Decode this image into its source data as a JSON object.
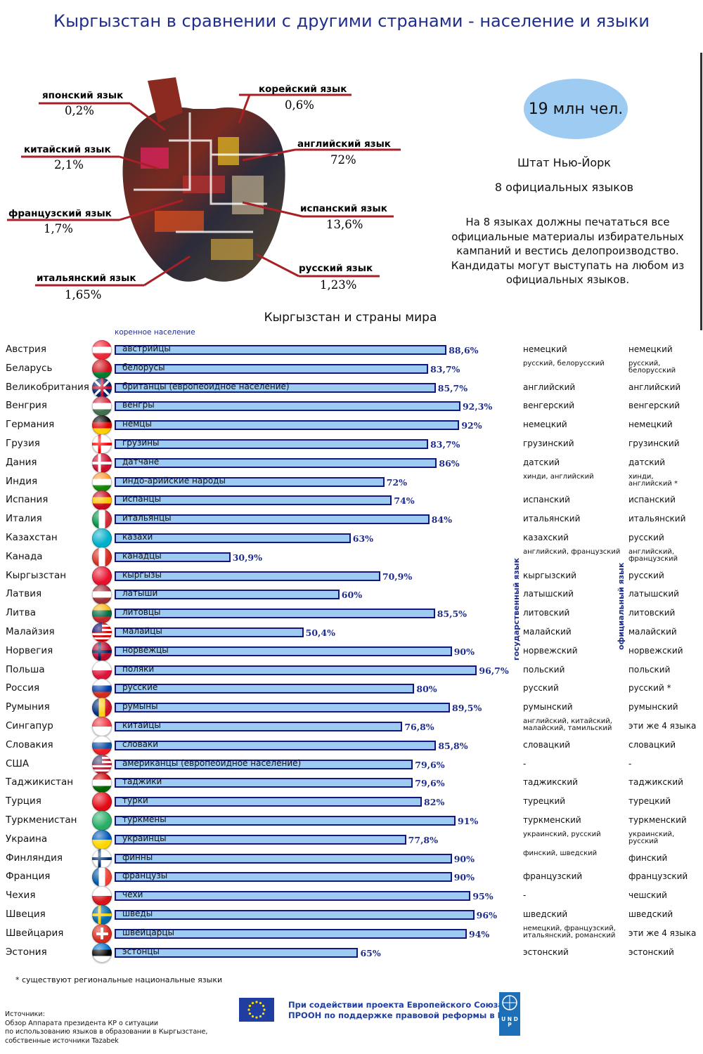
{
  "title": "Кыргызстан в сравнении с другими странами - население и языки",
  "apple_languages": [
    {
      "label": "японский язык",
      "pct": "0,2%"
    },
    {
      "label": "корейский язык",
      "pct": "0,6%"
    },
    {
      "label": "китайский язык",
      "pct": "2,1%"
    },
    {
      "label": "английский язык",
      "pct": "72%"
    },
    {
      "label": "французский язык",
      "pct": "1,7%"
    },
    {
      "label": "испанский язык",
      "pct": "13,6%"
    },
    {
      "label": "итальянский язык",
      "pct": "1,65%"
    },
    {
      "label": "русский язык",
      "pct": "1,23%"
    }
  ],
  "info": {
    "population": "19 млн чел.",
    "state": "Штат Нью-Йорк",
    "official": "8 официальных языков",
    "text": "На 8 языках должны печататься все официальные материалы избирательных кампаний и вестись делопроизводство. Кандидаты могут выступать на любом из официальных языков."
  },
  "chart_heading": "Кыргызстан и страны мира",
  "column_header": "коренное население",
  "state_lang_header": "государственный язык",
  "official_lang_header": "официальный язык",
  "chart_data": {
    "type": "bar",
    "orientation": "horizontal",
    "title": "Кыргызстан и страны мира",
    "series_label": "коренное население",
    "xlim": [
      0,
      100
    ],
    "rows": [
      {
        "country": "Австрия",
        "group": "австрийцы",
        "value": 88.6,
        "value_label": "88,6%",
        "state_lang": "немецкий",
        "official_lang": "немецкий",
        "flag": [
          "#ed2939",
          "#ffffff",
          "#ed2939"
        ],
        "flag_type": "h"
      },
      {
        "country": "Беларусь",
        "group": "белорусы",
        "value": 83.7,
        "value_label": "83,7%",
        "state_lang": "русский, белорусский",
        "official_lang": "русский, белорусский",
        "flag": [
          "#cf101a",
          "#cf101a",
          "#007c30"
        ],
        "flag_type": "h"
      },
      {
        "country": "Великобритания",
        "group": "британцы (европеоидное население)",
        "value": 85.7,
        "value_label": "85,7%",
        "state_lang": "английский",
        "official_lang": "английский",
        "flag": [
          "#012169",
          "#c8102e"
        ],
        "flag_type": "uk"
      },
      {
        "country": "Венгрия",
        "group": "венгры",
        "value": 92.3,
        "value_label": "92,3%",
        "state_lang": "венгерский",
        "official_lang": "венгерский",
        "flag": [
          "#cd2a3e",
          "#ffffff",
          "#436f4d"
        ],
        "flag_type": "h"
      },
      {
        "country": "Германия",
        "group": "немцы",
        "value": 92,
        "value_label": "92%",
        "state_lang": "немецкий",
        "official_lang": "немецкий",
        "flag": [
          "#000000",
          "#dd0000",
          "#ffce00"
        ],
        "flag_type": "h"
      },
      {
        "country": "Грузия",
        "group": "грузины",
        "value": 83.7,
        "value_label": "83,7%",
        "state_lang": "грузинский",
        "official_lang": "грузинский",
        "flag": [
          "#ffffff",
          "#ff0000"
        ],
        "flag_type": "cross"
      },
      {
        "country": "Дания",
        "group": "датчане",
        "value": 86,
        "value_label": "86%",
        "state_lang": "датский",
        "official_lang": "датский",
        "flag": [
          "#c8102e",
          "#ffffff"
        ],
        "flag_type": "cross"
      },
      {
        "country": "Индия",
        "group": "индо-арийские народы",
        "value": 72,
        "value_label": "72%",
        "state_lang": "хинди, английский",
        "official_lang": "хинди, английский *",
        "flag": [
          "#ff9933",
          "#ffffff",
          "#138808"
        ],
        "flag_type": "h"
      },
      {
        "country": "Испания",
        "group": "испанцы",
        "value": 74,
        "value_label": "74%",
        "state_lang": "испанский",
        "official_lang": "испанский",
        "flag": [
          "#c60b1e",
          "#ffc400",
          "#c60b1e"
        ],
        "flag_type": "h"
      },
      {
        "country": "Италия",
        "group": "итальянцы",
        "value": 84,
        "value_label": "84%",
        "state_lang": "итальянский",
        "official_lang": "итальянский",
        "flag": [
          "#009246",
          "#ffffff",
          "#ce2b37"
        ],
        "flag_type": "v"
      },
      {
        "country": "Казахстан",
        "group": "казахи",
        "value": 63,
        "value_label": "63%",
        "state_lang": "казахский",
        "official_lang": "русский",
        "flag": [
          "#00afca",
          "#fec50c"
        ],
        "flag_type": "solid"
      },
      {
        "country": "Канада",
        "group": "канадцы",
        "value": 30.9,
        "value_label": "30,9%",
        "state_lang": "английский, французский",
        "official_lang": "английский, французский",
        "flag": [
          "#d52b1e",
          "#ffffff",
          "#d52b1e"
        ],
        "flag_type": "v"
      },
      {
        "country": "Кыргызстан",
        "group": "кыргызы",
        "value": 70.9,
        "value_label": "70,9%",
        "state_lang": "кыргызский",
        "official_lang": "русский",
        "flag": [
          "#e8112d",
          "#ffef00"
        ],
        "flag_type": "solid"
      },
      {
        "country": "Латвия",
        "group": "латыши",
        "value": 60,
        "value_label": "60%",
        "state_lang": "латышский",
        "official_lang": "латышский",
        "flag": [
          "#9e3039",
          "#ffffff",
          "#9e3039"
        ],
        "flag_type": "h"
      },
      {
        "country": "Литва",
        "group": "литовцы",
        "value": 85.5,
        "value_label": "85,5%",
        "state_lang": "литовский",
        "official_lang": "литовский",
        "flag": [
          "#fdb913",
          "#006a44",
          "#c1272d"
        ],
        "flag_type": "h"
      },
      {
        "country": "Малайзия",
        "group": "малайцы",
        "value": 50.4,
        "value_label": "50,4%",
        "state_lang": "малайский",
        "official_lang": "малайский",
        "flag": [
          "#cc0001",
          "#ffffff",
          "#010066"
        ],
        "flag_type": "stripes"
      },
      {
        "country": "Норвегия",
        "group": "норвежцы",
        "value": 90,
        "value_label": "90%",
        "state_lang": "норвежский",
        "official_lang": "норвежский",
        "flag": [
          "#ba0c2f",
          "#00205b"
        ],
        "flag_type": "cross"
      },
      {
        "country": "Польша",
        "group": "поляки",
        "value": 96.7,
        "value_label": "96,7%",
        "state_lang": "польский",
        "official_lang": "польский",
        "flag": [
          "#ffffff",
          "#dc143c"
        ],
        "flag_type": "h2"
      },
      {
        "country": "Россия",
        "group": "русские",
        "value": 80,
        "value_label": "80%",
        "state_lang": "русский",
        "official_lang": "русский *",
        "flag": [
          "#ffffff",
          "#0039a6",
          "#d52b1e"
        ],
        "flag_type": "h"
      },
      {
        "country": "Румыния",
        "group": "румыны",
        "value": 89.5,
        "value_label": "89,5%",
        "state_lang": "румынский",
        "official_lang": "румынский",
        "flag": [
          "#002b7f",
          "#fcd116",
          "#ce1126"
        ],
        "flag_type": "v"
      },
      {
        "country": "Сингапур",
        "group": "китайцы",
        "value": 76.8,
        "value_label": "76,8%",
        "state_lang": "английский, китайский, малайский, тамильский",
        "official_lang": "эти же 4 языка",
        "flag": [
          "#ef3340",
          "#ffffff"
        ],
        "flag_type": "h2"
      },
      {
        "country": "Словакия",
        "group": "словаки",
        "value": 85.8,
        "value_label": "85,8%",
        "state_lang": "словацкий",
        "official_lang": "словацкий",
        "flag": [
          "#ffffff",
          "#0b4ea2",
          "#ee1c25"
        ],
        "flag_type": "h"
      },
      {
        "country": "США",
        "group": "американцы (европеоидное население)",
        "value": 79.6,
        "value_label": "79,6%",
        "state_lang": "-",
        "official_lang": "-",
        "flag": [
          "#b22234",
          "#ffffff",
          "#3c3b6e"
        ],
        "flag_type": "stripes"
      },
      {
        "country": "Таджикистан",
        "group": "таджики",
        "value": 79.6,
        "value_label": "79,6%",
        "state_lang": "таджикский",
        "official_lang": "таджикский",
        "flag": [
          "#cc0000",
          "#ffffff",
          "#006600"
        ],
        "flag_type": "h"
      },
      {
        "country": "Турция",
        "group": "турки",
        "value": 82,
        "value_label": "82%",
        "state_lang": "турецкий",
        "official_lang": "турецкий",
        "flag": [
          "#e30a17",
          "#e30a17"
        ],
        "flag_type": "solid"
      },
      {
        "country": "Туркменистан",
        "group": "туркмены",
        "value": 91,
        "value_label": "91%",
        "state_lang": "туркменский",
        "official_lang": "туркменский",
        "flag": [
          "#28ae66",
          "#28ae66"
        ],
        "flag_type": "solid"
      },
      {
        "country": "Украина",
        "group": "украинцы",
        "value": 77.8,
        "value_label": "77,8%",
        "state_lang": "украинский, русский",
        "official_lang": "украинский, русский",
        "flag": [
          "#0057b7",
          "#ffd700"
        ],
        "flag_type": "h2"
      },
      {
        "country": "Финляндия",
        "group": "финны",
        "value": 90,
        "value_label": "90%",
        "state_lang": "финский, шведский",
        "official_lang": "финский",
        "flag": [
          "#ffffff",
          "#002f6c"
        ],
        "flag_type": "cross"
      },
      {
        "country": "Франция",
        "group": "французы",
        "value": 90,
        "value_label": "90%",
        "state_lang": "французский",
        "official_lang": "французский",
        "flag": [
          "#0055a4",
          "#ffffff",
          "#ef4135"
        ],
        "flag_type": "v"
      },
      {
        "country": "Чехия",
        "group": "чехи",
        "value": 95,
        "value_label": "95%",
        "state_lang": "-",
        "official_lang": "чешский",
        "flag": [
          "#ffffff",
          "#d7141a"
        ],
        "flag_type": "h2"
      },
      {
        "country": "Швеция",
        "group": "шведы",
        "value": 96,
        "value_label": "96%",
        "state_lang": "шведский",
        "official_lang": "шведский",
        "flag": [
          "#006aa7",
          "#fecc00"
        ],
        "flag_type": "cross"
      },
      {
        "country": "Швейцария",
        "group": "швейцарцы",
        "value": 94,
        "value_label": "94%",
        "state_lang": "немецкий, французский, итальянский, романский",
        "official_lang": "эти же 4 языка",
        "flag": [
          "#d52b1e",
          "#ffffff"
        ],
        "flag_type": "swiss"
      },
      {
        "country": "Эстония",
        "group": "эстонцы",
        "value": 65,
        "value_label": "65%",
        "state_lang": "эстонский",
        "official_lang": "эстонский",
        "flag": [
          "#0072ce",
          "#000000",
          "#ffffff"
        ],
        "flag_type": "h"
      }
    ]
  },
  "footnote": "* существуют региональные национальные языки",
  "sources": [
    "Источники:",
    "Обзор Аппарата президента КР о ситуации",
    "по использованию языков в образовании в Кыргызстане,",
    "собственные источники Tazabek"
  ],
  "support_text": [
    "При содействии проекта Европейского Союза и",
    "ПРООН по поддержке правовой реформы в КР"
  ],
  "undp_text": "U N D P"
}
